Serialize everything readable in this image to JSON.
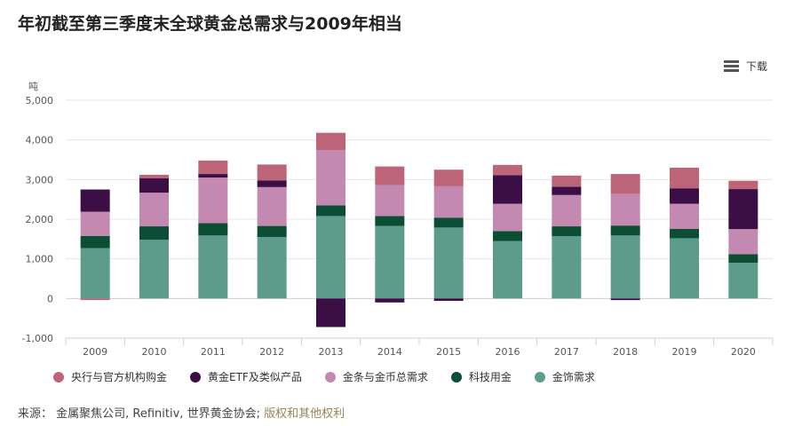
{
  "title": "年初截至第三季度末全球黄金总需求与2009年相当",
  "download_label": "下载",
  "source_prefix": "来源：",
  "source_text": "金属聚焦公司, Refinitiv, 世界黄金协会;",
  "source_link": "版权和其他权利",
  "chart_data": {
    "type": "bar",
    "stacked": true,
    "ylabel": "吨",
    "ylim": [
      -1000,
      5000
    ],
    "yticks": [
      -1000,
      0,
      1000,
      2000,
      3000,
      4000,
      5000
    ],
    "ytick_labels": [
      "-1,000",
      "0",
      "1,000",
      "2,000",
      "3,000",
      "4,000",
      "5,000"
    ],
    "categories": [
      "2009",
      "2010",
      "2011",
      "2012",
      "2013",
      "2014",
      "2015",
      "2016",
      "2017",
      "2018",
      "2019",
      "2020"
    ],
    "series": [
      {
        "name": "金饰需求",
        "color": "#5d9b8b",
        "values": [
          1270,
          1480,
          1590,
          1550,
          2080,
          1830,
          1790,
          1450,
          1570,
          1590,
          1520,
          900
        ]
      },
      {
        "name": "科技用金",
        "color": "#0b4d35",
        "values": [
          310,
          340,
          310,
          280,
          270,
          250,
          250,
          250,
          250,
          250,
          240,
          220
        ]
      },
      {
        "name": "金条与金币总需求",
        "color": "#c389b1",
        "values": [
          610,
          850,
          1150,
          980,
          1390,
          780,
          790,
          690,
          790,
          800,
          630,
          630
        ]
      },
      {
        "name": "黄金ETF及类似产品",
        "color": "#3b0e45",
        "values": [
          560,
          360,
          90,
          170,
          -720,
          -100,
          -60,
          720,
          210,
          -40,
          390,
          1010
        ]
      },
      {
        "name": "央行与官方机构购金",
        "color": "#bd6578",
        "values": [
          -40,
          90,
          340,
          400,
          440,
          470,
          420,
          260,
          280,
          500,
          520,
          210
        ]
      }
    ],
    "legend": [
      {
        "name": "央行与官方机构购金",
        "color": "#bd6578"
      },
      {
        "name": "黄金ETF及类似产品",
        "color": "#3b0e45"
      },
      {
        "name": "金条与金币总需求",
        "color": "#c389b1"
      },
      {
        "name": "科技用金",
        "color": "#0b4d35"
      },
      {
        "name": "金饰需求",
        "color": "#5d9b8b"
      }
    ],
    "legend_position": "bottom",
    "grid": true
  }
}
